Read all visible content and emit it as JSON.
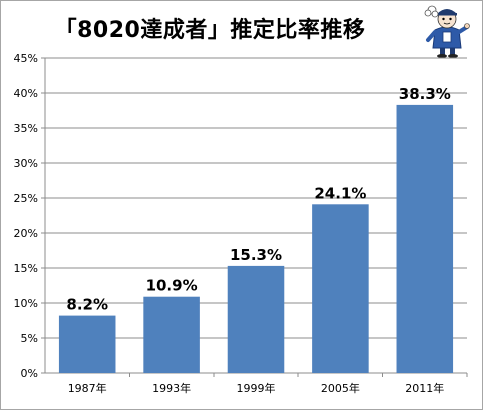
{
  "chart_data": {
    "type": "bar",
    "title": "「8020達成者」推定比率推移",
    "categories": [
      "1987年",
      "1993年",
      "1999年",
      "2005年",
      "2011年"
    ],
    "values": [
      8.2,
      10.9,
      15.3,
      24.1,
      38.3
    ],
    "data_labels": [
      "8.2%",
      "10.9%",
      "15.3%",
      "24.1%",
      "38.3%"
    ],
    "y_ticks": [
      "0%",
      "5%",
      "10%",
      "15%",
      "20%",
      "25%",
      "30%",
      "35%",
      "40%",
      "45%"
    ],
    "ylim": [
      0,
      45
    ],
    "y_tick_step": 5,
    "grid": true,
    "legend": "none",
    "xlabel": "",
    "ylabel": ""
  },
  "colors": {
    "bar": "#4f81bd",
    "grid": "#8c8c8c",
    "axis": "#8c8c8c"
  },
  "mascot": {
    "icon": "mascot-character-icon"
  }
}
